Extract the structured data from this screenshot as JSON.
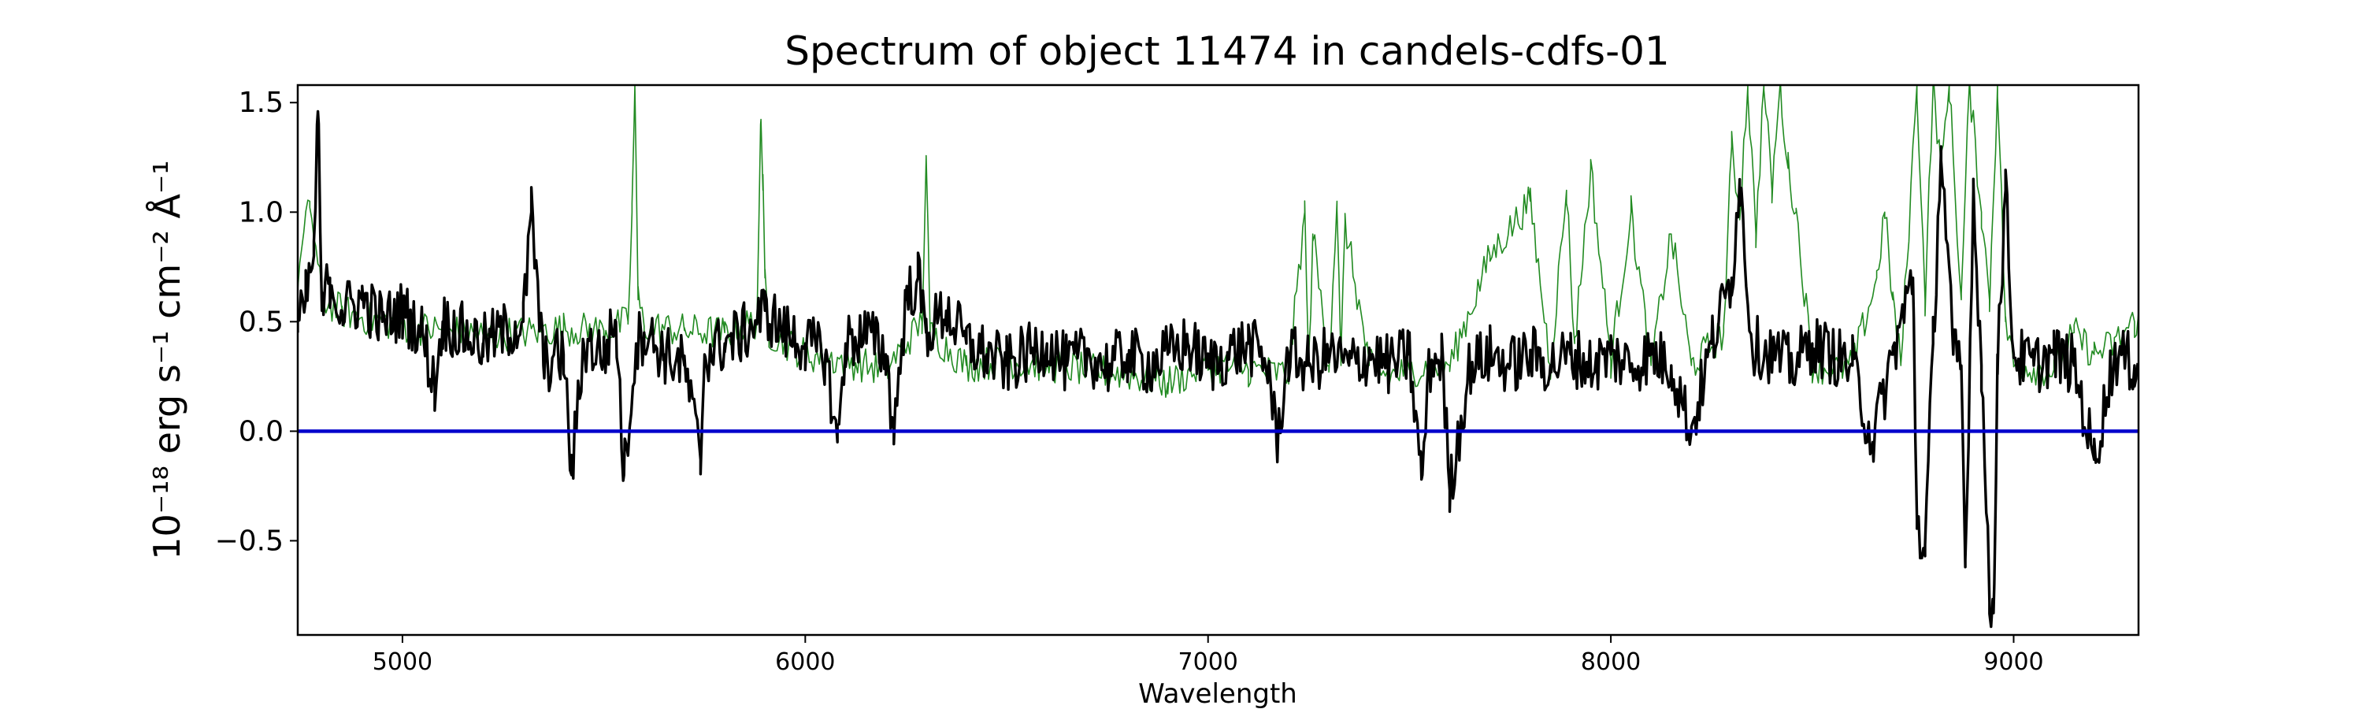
{
  "chart_data": {
    "type": "line",
    "title": "Spectrum of object 11474 in candels-cdfs-01",
    "xlabel": "Wavelength",
    "ylabel": "10⁻¹⁸ erg s⁻¹ cm⁻² Å⁻¹",
    "xlim": [
      4740,
      9310
    ],
    "ylim": [
      -0.93,
      1.58
    ],
    "xticks": [
      5000,
      6000,
      7000,
      8000,
      9000
    ],
    "xtick_labels": [
      "5000",
      "6000",
      "7000",
      "8000",
      "9000"
    ],
    "yticks": [
      -0.5,
      0.0,
      0.5,
      1.0,
      1.5
    ],
    "ytick_labels": [
      "−0.5",
      "0.0",
      "0.5",
      "1.0",
      "1.5"
    ],
    "grid": false,
    "series": [
      {
        "color": "#228b22",
        "style": "thin",
        "x": [
          4740,
          4770,
          4800,
          4850,
          4900,
          5000,
          5100,
          5200,
          5300,
          5400,
          5500,
          5560,
          5570,
          5577,
          5585,
          5600,
          5700,
          5800,
          5880,
          5889,
          5895,
          5900,
          5910,
          6000,
          6100,
          6200,
          6290,
          6300,
          6310,
          6400,
          6500,
          6600,
          6700,
          6800,
          6900,
          7000,
          7100,
          7200,
          7240,
          7250,
          7260,
          7300,
          7320,
          7330,
          7340,
          7400,
          7450,
          7500,
          7600,
          7700,
          7800,
          7850,
          7890,
          7910,
          7950,
          8000,
          8050,
          8100,
          8150,
          8200,
          8280,
          8300,
          8320,
          8340,
          8360,
          8380,
          8400,
          8420,
          8440,
          8460,
          8500,
          8550,
          8600,
          8660,
          8680,
          8700,
          8720,
          8760,
          8780,
          8800,
          8820,
          8840,
          8870,
          8890,
          8920,
          8940,
          8960,
          8980,
          9000,
          9100,
          9150,
          9200,
          9250,
          9300
        ],
        "y": [
          0.7,
          1.05,
          0.6,
          0.55,
          0.52,
          0.48,
          0.46,
          0.44,
          0.45,
          0.47,
          0.46,
          0.5,
          1.0,
          1.58,
          0.6,
          0.48,
          0.46,
          0.45,
          0.5,
          1.4,
          1.1,
          0.7,
          0.45,
          0.35,
          0.32,
          0.28,
          0.5,
          1.25,
          0.45,
          0.3,
          0.32,
          0.3,
          0.28,
          0.26,
          0.22,
          0.3,
          0.28,
          0.26,
          1.0,
          0.3,
          0.9,
          0.3,
          1.05,
          0.3,
          0.95,
          0.3,
          0.25,
          0.28,
          0.3,
          0.8,
          1.05,
          0.3,
          1.1,
          0.4,
          1.2,
          0.32,
          1.0,
          0.3,
          0.9,
          0.3,
          0.45,
          1.3,
          1.0,
          1.58,
          0.9,
          1.58,
          1.1,
          1.58,
          1.2,
          1.0,
          0.3,
          0.28,
          0.3,
          0.7,
          1.0,
          0.6,
          0.3,
          1.58,
          0.6,
          1.58,
          1.2,
          1.58,
          0.6,
          1.58,
          1.0,
          0.6,
          1.58,
          0.5,
          0.3,
          0.28,
          0.45,
          0.35,
          0.4,
          0.5
        ],
        "noise_amplitude": 0.08
      },
      {
        "color": "#000000",
        "style": "thick",
        "x": [
          4740,
          4760,
          4780,
          4790,
          4800,
          4820,
          4850,
          4900,
          4950,
          5000,
          5050,
          5080,
          5100,
          5150,
          5200,
          5250,
          5300,
          5320,
          5350,
          5400,
          5420,
          5450,
          5500,
          5530,
          5550,
          5580,
          5600,
          5650,
          5700,
          5740,
          5750,
          5800,
          5850,
          5900,
          5950,
          6000,
          6050,
          6080,
          6100,
          6150,
          6200,
          6220,
          6250,
          6280,
          6300,
          6350,
          6400,
          6450,
          6500,
          6550,
          6600,
          6650,
          6700,
          6750,
          6800,
          6850,
          6900,
          6950,
          7000,
          7050,
          7100,
          7150,
          7170,
          7200,
          7250,
          7300,
          7350,
          7400,
          7450,
          7500,
          7530,
          7550,
          7580,
          7600,
          7650,
          7700,
          7750,
          7800,
          7850,
          7900,
          7950,
          8000,
          8050,
          8100,
          8150,
          8200,
          8250,
          8300,
          8320,
          8350,
          8400,
          8450,
          8500,
          8550,
          8600,
          8650,
          8700,
          8750,
          8760,
          8780,
          8800,
          8820,
          8850,
          8870,
          8880,
          8900,
          8920,
          8940,
          8950,
          8960,
          8980,
          9000,
          9050,
          9100,
          9150,
          9200,
          9250,
          9300
        ],
        "y": [
          0.45,
          0.6,
          0.8,
          1.46,
          0.55,
          0.7,
          0.55,
          0.6,
          0.5,
          0.55,
          0.45,
          0.2,
          0.5,
          0.45,
          0.4,
          0.45,
          0.5,
          1.0,
          0.3,
          0.35,
          -0.2,
          0.4,
          0.35,
          0.5,
          -0.2,
          0.4,
          0.45,
          0.35,
          0.3,
          -0.13,
          0.35,
          0.4,
          0.45,
          0.55,
          0.45,
          0.4,
          0.35,
          -0.05,
          0.4,
          0.45,
          0.35,
          0.0,
          0.6,
          0.7,
          0.45,
          0.55,
          0.4,
          0.35,
          0.3,
          0.35,
          0.4,
          0.3,
          0.35,
          0.3,
          0.35,
          0.3,
          0.35,
          0.4,
          0.3,
          0.35,
          0.4,
          0.3,
          -0.05,
          0.35,
          0.3,
          0.35,
          0.3,
          0.35,
          0.3,
          0.35,
          -0.22,
          0.3,
          0.35,
          -0.27,
          0.3,
          0.35,
          0.3,
          0.35,
          0.3,
          0.35,
          0.3,
          0.35,
          0.3,
          0.35,
          0.3,
          0.0,
          0.4,
          0.7,
          1.15,
          0.4,
          0.35,
          0.3,
          0.4,
          0.35,
          0.3,
          -0.05,
          0.35,
          0.7,
          -0.4,
          -0.57,
          0.4,
          1.3,
          0.35,
          0.3,
          -0.62,
          1.1,
          0.3,
          -0.78,
          -0.83,
          0.35,
          1.1,
          0.35,
          0.3,
          0.35,
          0.3,
          -0.13,
          0.35,
          0.3
        ],
        "noise_amplitude": 0.14
      },
      {
        "color": "#0000cc",
        "style": "zero-line",
        "x": [
          4740,
          9310
        ],
        "y": [
          0.0,
          0.0
        ]
      }
    ]
  }
}
